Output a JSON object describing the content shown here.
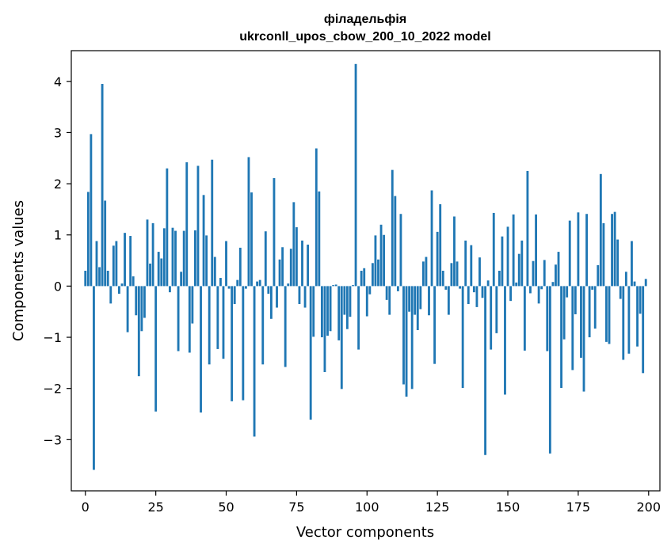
{
  "chart_data": {
    "type": "bar",
    "title": "філадельфія",
    "subtitle": "ukrconll_upos_cbow_200_10_2022 model",
    "xlabel": "Vector components",
    "ylabel": "Components values",
    "xlim": [
      -5,
      204
    ],
    "ylim": [
      -4.0,
      4.6
    ],
    "xticks": [
      0,
      25,
      50,
      75,
      100,
      125,
      150,
      175,
      200
    ],
    "yticks": [
      -3,
      -2,
      -1,
      0,
      1,
      2,
      3,
      4
    ],
    "grid": false,
    "color": "#1f77b4",
    "x": [
      0,
      1,
      2,
      3,
      4,
      5,
      6,
      7,
      8,
      9,
      10,
      11,
      12,
      13,
      14,
      15,
      16,
      17,
      18,
      19,
      20,
      21,
      22,
      23,
      24,
      25,
      26,
      27,
      28,
      29,
      30,
      31,
      32,
      33,
      34,
      35,
      36,
      37,
      38,
      39,
      40,
      41,
      42,
      43,
      44,
      45,
      46,
      47,
      48,
      49,
      50,
      51,
      52,
      53,
      54,
      55,
      56,
      57,
      58,
      59,
      60,
      61,
      62,
      63,
      64,
      65,
      66,
      67,
      68,
      69,
      70,
      71,
      72,
      73,
      74,
      75,
      76,
      77,
      78,
      79,
      80,
      81,
      82,
      83,
      84,
      85,
      86,
      87,
      88,
      89,
      90,
      91,
      92,
      93,
      94,
      95,
      96,
      97,
      98,
      99,
      100,
      101,
      102,
      103,
      104,
      105,
      106,
      107,
      108,
      109,
      110,
      111,
      112,
      113,
      114,
      115,
      116,
      117,
      118,
      119,
      120,
      121,
      122,
      123,
      124,
      125,
      126,
      127,
      128,
      129,
      130,
      131,
      132,
      133,
      134,
      135,
      136,
      137,
      138,
      139,
      140,
      141,
      142,
      143,
      144,
      145,
      146,
      147,
      148,
      149,
      150,
      151,
      152,
      153,
      154,
      155,
      156,
      157,
      158,
      159,
      160,
      161,
      162,
      163,
      164,
      165,
      166,
      167,
      168,
      169,
      170,
      171,
      172,
      173,
      174,
      175,
      176,
      177,
      178,
      179,
      180,
      181,
      182,
      183,
      184,
      185,
      186,
      187,
      188,
      189,
      190,
      191,
      192,
      193,
      194,
      195,
      196,
      197,
      198,
      199
    ],
    "values": [
      0.3,
      1.84,
      2.97,
      -3.59,
      0.88,
      0.37,
      3.95,
      1.67,
      0.3,
      -0.34,
      0.79,
      0.88,
      -0.15,
      0.05,
      1.04,
      -0.9,
      0.98,
      0.19,
      -0.57,
      -1.76,
      -0.88,
      -0.62,
      1.3,
      0.44,
      1.23,
      -2.45,
      0.67,
      0.54,
      1.13,
      2.3,
      -0.12,
      1.14,
      1.08,
      -1.27,
      0.28,
      1.08,
      2.42,
      -1.3,
      -0.73,
      1.09,
      2.35,
      -2.47,
      1.78,
      0.99,
      -1.53,
      2.47,
      0.57,
      -1.23,
      0.16,
      -1.42,
      0.88,
      -0.05,
      -2.25,
      -0.35,
      0.12,
      0.75,
      -2.23,
      -0.05,
      2.52,
      1.83,
      -2.94,
      0.09,
      0.12,
      -1.53,
      1.07,
      -0.15,
      -0.64,
      2.11,
      -0.42,
      0.52,
      0.76,
      -1.58,
      0.05,
      0.73,
      1.64,
      1.15,
      -0.35,
      0.89,
      -0.42,
      0.81,
      -2.61,
      -0.99,
      2.69,
      1.85,
      -1.0,
      -1.68,
      -0.97,
      -0.88,
      0.02,
      0.03,
      -1.06,
      -2.01,
      -0.56,
      -0.84,
      -0.6,
      0.02,
      4.34,
      -1.24,
      0.3,
      0.35,
      -0.59,
      -0.16,
      0.45,
      0.99,
      0.52,
      1.2,
      1.0,
      -0.27,
      -0.56,
      2.27,
      1.76,
      -0.1,
      1.41,
      -1.92,
      -2.16,
      -0.5,
      -2.01,
      -0.56,
      -0.86,
      -0.45,
      0.48,
      0.57,
      -0.57,
      1.87,
      -1.52,
      1.06,
      1.6,
      0.3,
      -0.07,
      -0.56,
      0.45,
      1.36,
      0.48,
      -0.05,
      -1.99,
      0.89,
      -0.35,
      0.8,
      -0.12,
      -0.41,
      0.56,
      -0.23,
      -3.3,
      0.11,
      -1.24,
      1.43,
      -0.92,
      0.3,
      0.97,
      -2.12,
      1.16,
      -0.29,
      1.4,
      0.07,
      0.63,
      0.89,
      -1.26,
      2.25,
      -0.14,
      0.49,
      1.4,
      -0.34,
      -0.06,
      0.51,
      -1.27,
      -3.27,
      0.08,
      0.42,
      0.67,
      -1.99,
      -1.04,
      -0.22,
      1.28,
      -1.64,
      -0.55,
      1.44,
      -1.4,
      -2.06,
      1.41,
      -1.0,
      -0.07,
      -0.83,
      0.41,
      2.19,
      1.23,
      -1.09,
      -1.13,
      1.41,
      1.45,
      0.91,
      -0.25,
      -1.44,
      0.28,
      -1.32,
      0.88,
      0.09,
      -1.18,
      -0.54,
      -1.7,
      0.14
    ]
  }
}
